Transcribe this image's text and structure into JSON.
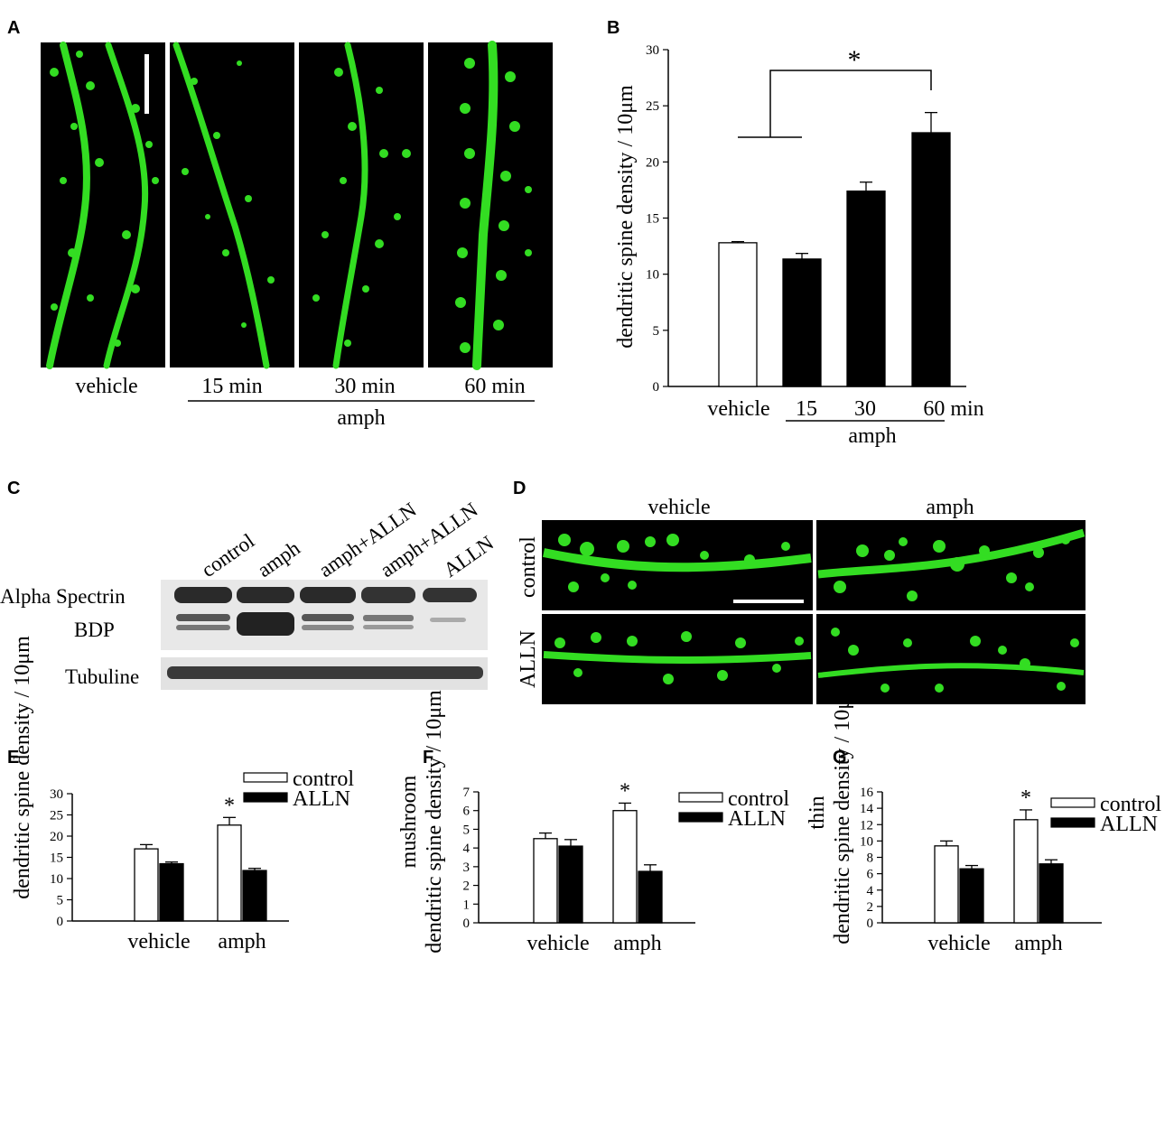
{
  "panels": {
    "A": {
      "letter": "A",
      "images": [
        {
          "label": "vehicle",
          "id": "vehicle"
        },
        {
          "label": "15 min",
          "id": "15"
        },
        {
          "label": "30 min",
          "id": "30"
        },
        {
          "label": "60 min",
          "id": "60"
        }
      ],
      "group_label": "amph"
    },
    "B": {
      "letter": "B"
    },
    "C": {
      "letter": "C",
      "lanes": [
        "control",
        "amph",
        "amph+ALLN",
        "amph+ALLN",
        "ALLN"
      ],
      "rows": [
        "Alpha Spectrin",
        "BDP",
        "Tubuline"
      ]
    },
    "D": {
      "letter": "D",
      "col_labels": [
        "vehicle",
        "amph"
      ],
      "row_labels": [
        "control",
        "ALLN"
      ]
    },
    "E": {
      "letter": "E"
    },
    "F": {
      "letter": "F"
    },
    "G": {
      "letter": "G"
    }
  },
  "colors": {
    "green": "#33dd22",
    "black": "#000000",
    "white": "#ffffff"
  },
  "chart_data": [
    {
      "id": "B",
      "type": "bar",
      "categories": [
        "vehicle",
        "15",
        "30",
        "60 min"
      ],
      "values": [
        12.8,
        11.35,
        17.4,
        22.6
      ],
      "errors": [
        0.1,
        0.5,
        0.8,
        1.8
      ],
      "bar_colors": [
        "white",
        "black",
        "black",
        "black"
      ],
      "ylabel": "dendritic spine density / 10μm",
      "group_label": "amph",
      "ylim": [
        0,
        30
      ],
      "yticks": [
        0,
        5,
        10,
        15,
        20,
        25,
        30
      ],
      "significance": "*"
    },
    {
      "id": "E",
      "type": "bar",
      "categories": [
        "vehicle",
        "amph"
      ],
      "series": [
        {
          "name": "control",
          "values": [
            17.0,
            22.6
          ],
          "errors": [
            1.0,
            1.8
          ]
        },
        {
          "name": "ALLN",
          "values": [
            13.5,
            11.9
          ],
          "errors": [
            0.4,
            0.5
          ]
        }
      ],
      "ylabel": "dendritic spine density / 10μm",
      "ylim": [
        0,
        30
      ],
      "yticks": [
        0,
        5,
        10,
        15,
        20,
        25,
        30
      ],
      "significance": [
        "",
        "*"
      ]
    },
    {
      "id": "F",
      "type": "bar",
      "categories": [
        "vehicle",
        "amph"
      ],
      "series": [
        {
          "name": "control",
          "values": [
            4.5,
            6.0
          ],
          "errors": [
            0.3,
            0.4
          ]
        },
        {
          "name": "ALLN",
          "values": [
            4.1,
            2.75
          ],
          "errors": [
            0.35,
            0.35
          ]
        }
      ],
      "ylabel": "dendritic spine density / 10μm",
      "ylabel2": "mushroom",
      "ylim": [
        0,
        7
      ],
      "yticks": [
        0,
        1,
        2,
        3,
        4,
        5,
        6,
        7
      ],
      "significance": [
        "",
        "*"
      ]
    },
    {
      "id": "G",
      "type": "bar",
      "categories": [
        "vehicle",
        "amph"
      ],
      "series": [
        {
          "name": "control",
          "values": [
            9.4,
            12.6
          ],
          "errors": [
            0.6,
            1.2
          ]
        },
        {
          "name": "ALLN",
          "values": [
            6.6,
            7.2
          ],
          "errors": [
            0.4,
            0.5
          ]
        }
      ],
      "ylabel": "dendritic spine density / 10μm",
      "ylabel2": "thin",
      "ylim": [
        0,
        16
      ],
      "yticks": [
        0,
        2,
        4,
        6,
        8,
        10,
        12,
        14,
        16
      ],
      "significance": [
        "",
        "*"
      ]
    }
  ]
}
